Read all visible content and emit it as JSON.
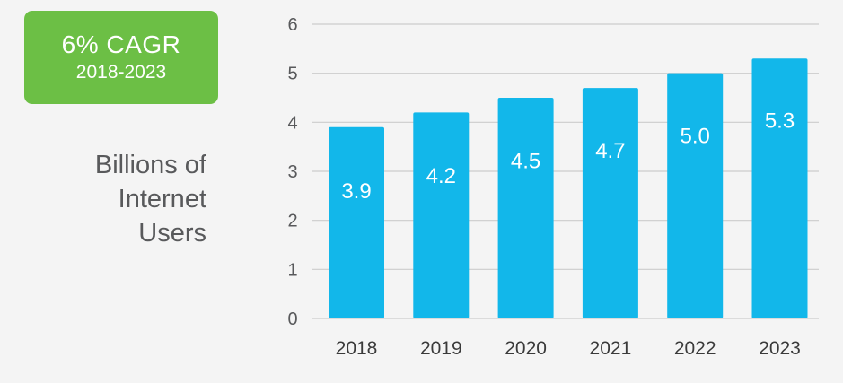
{
  "badge": {
    "title": "6% CAGR",
    "subtitle": "2018-2023",
    "color": "#6cbf45"
  },
  "side_label": {
    "lines": [
      "Billions of",
      "Internet",
      "Users"
    ]
  },
  "colors": {
    "bar": "#12b7ea",
    "grid": "#cccccc",
    "background": "#f4f4f4"
  },
  "chart_data": {
    "type": "bar",
    "categories": [
      "2018",
      "2019",
      "2020",
      "2021",
      "2022",
      "2023"
    ],
    "values": [
      3.9,
      4.2,
      4.5,
      4.7,
      5.0,
      5.3
    ],
    "data_labels": [
      "3.9",
      "4.2",
      "4.5",
      "4.7",
      "5.0",
      "5.3"
    ],
    "ylabel": "Billions of Internet Users",
    "ylim": [
      0,
      6
    ],
    "yticks": [
      0,
      1,
      2,
      3,
      4,
      5,
      6
    ],
    "grid": true,
    "data_label_position": "inside"
  }
}
